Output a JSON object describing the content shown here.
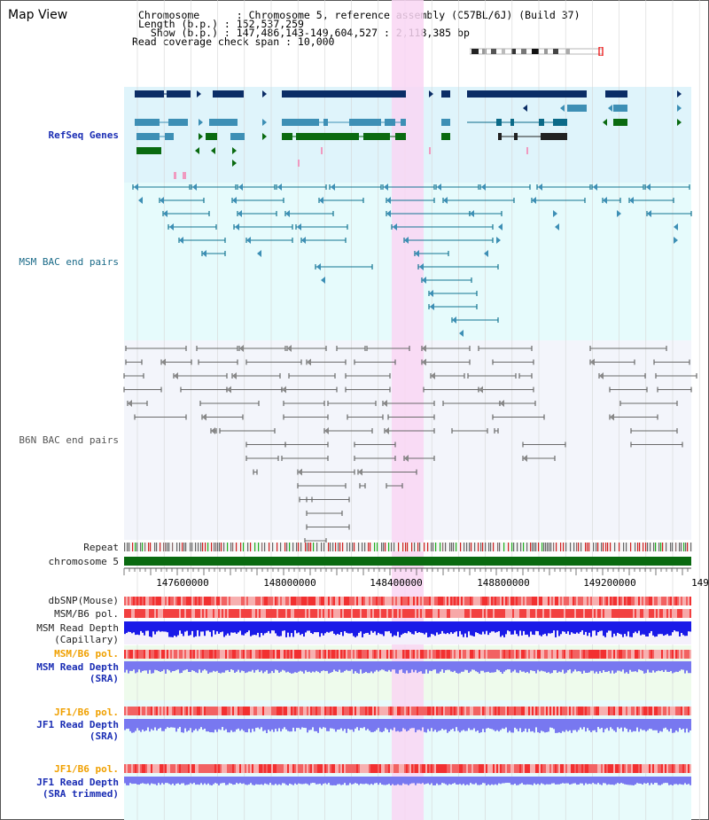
{
  "app": {
    "title": "Map View"
  },
  "header": {
    "chromosome_line": "Chromosome      : Chromosome 5, reference assembly (C57BL/6J) (Build 37)",
    "length_line": "Length (b.p.) : 152,537,259",
    "show_line": "  Show (b.p.) : 147,486,143-149,604,527 : 2,118,385 bp",
    "coverage_line": "Read coverage check span : 10,000"
  },
  "tracks": {
    "refseq": "RefSeq Genes",
    "msm_bac": "MSM BAC end pairs",
    "b6n_bac": "B6N BAC end pairs",
    "repeat": "Repeat",
    "chromosome": "chromosome 5",
    "dbsnp": "dbSNP(Mouse)",
    "msm_b6_pol": "MSM/B6 pol.",
    "msm_depth_cap": "MSM Read Depth\n(Capillary)",
    "msm_b6_pol_2": "MSM/B6 pol.",
    "msm_depth_sra": "MSM Read Depth\n(SRA)",
    "jf1_b6_pol": "JF1/B6 pol.",
    "jf1_depth_sra": "JF1 Read Depth\n(SRA)",
    "jf1_b6_pol_2": "JF1/B6 pol.",
    "jf1_depth_trim": "JF1 Read Depth\n(SRA trimmed)"
  },
  "axis": {
    "ticks": [
      "147600000",
      "148000000",
      "148400000",
      "148800000",
      "149200000",
      "149"
    ]
  },
  "colors": {
    "refseq_bg": "#dff4fb",
    "msm_bg": "#e6fbfc",
    "b6n_bg": "#f3f5fb",
    "highlight": "#f9d6f3",
    "gene_dark": "#0b2d66",
    "gene_mid": "#3d8fb5",
    "gene_green": "#0a6a10",
    "msm_line": "#137592",
    "b6n_line": "#6a6a6a",
    "chrom_bar": "#0a6a10",
    "depth_blue": "#1a1ae8",
    "depth_light": "#7878f0",
    "snp_red": "#f23030"
  }
}
